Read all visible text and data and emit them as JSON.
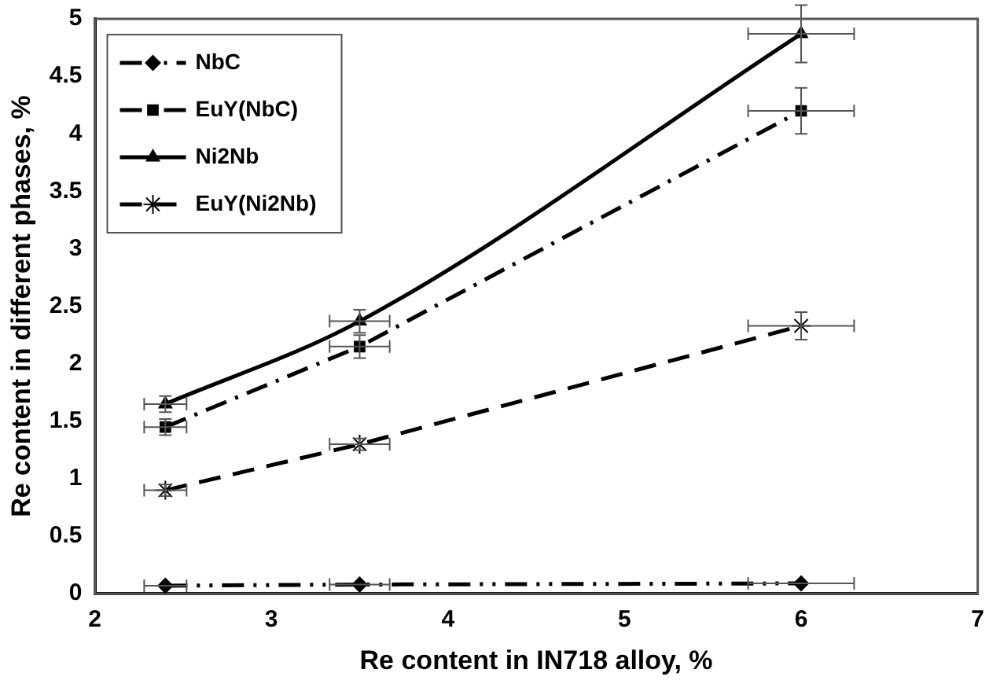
{
  "chart_data": {
    "type": "line",
    "xlabel": "Re content in IN718 alloy, %",
    "ylabel": "Re content in different phases, %",
    "x": [
      2.4,
      3.5,
      6
    ],
    "xlim": [
      2,
      7
    ],
    "xticks": [
      2,
      3,
      4,
      5,
      6,
      7
    ],
    "ylim": [
      0,
      5
    ],
    "yticks": [
      0,
      0.5,
      1,
      1.5,
      2,
      2.5,
      3,
      3.5,
      4,
      4.5,
      5
    ],
    "grid": false,
    "legend": "top left",
    "series": [
      {
        "name": "NbC",
        "color": "#000000",
        "values": [
          0.07,
          0.08,
          0.09
        ],
        "marker": "diamond",
        "line_style": "dashdotdot",
        "errors": [
          null,
          null,
          null
        ],
        "xerrors": [
          0.12,
          0.17,
          0.3
        ]
      },
      {
        "name": "EuY(NbC)",
        "color": "#000000",
        "values": [
          1.45,
          2.15,
          4.2
        ],
        "marker": "square",
        "line_style": "dashdot",
        "errors": [
          0.07,
          0.1,
          0.2
        ],
        "xerrors": [
          0.12,
          0.17,
          0.3
        ]
      },
      {
        "name": "Ni2Nb",
        "color": "#000000",
        "values": [
          1.65,
          2.37,
          4.87
        ],
        "marker": "triangle",
        "line_style": "solid",
        "errors": [
          0.07,
          0.1,
          0.25
        ],
        "xerrors": [
          0.12,
          0.17,
          0.3
        ]
      },
      {
        "name": "EuY(Ni2Nb)",
        "color": "#000000",
        "values": [
          0.9,
          1.3,
          2.33
        ],
        "marker": "cross",
        "line_style": "dashed",
        "errors": [
          0.05,
          0.05,
          0.12
        ],
        "xerrors": [
          0.12,
          0.17,
          0.3
        ]
      }
    ]
  }
}
